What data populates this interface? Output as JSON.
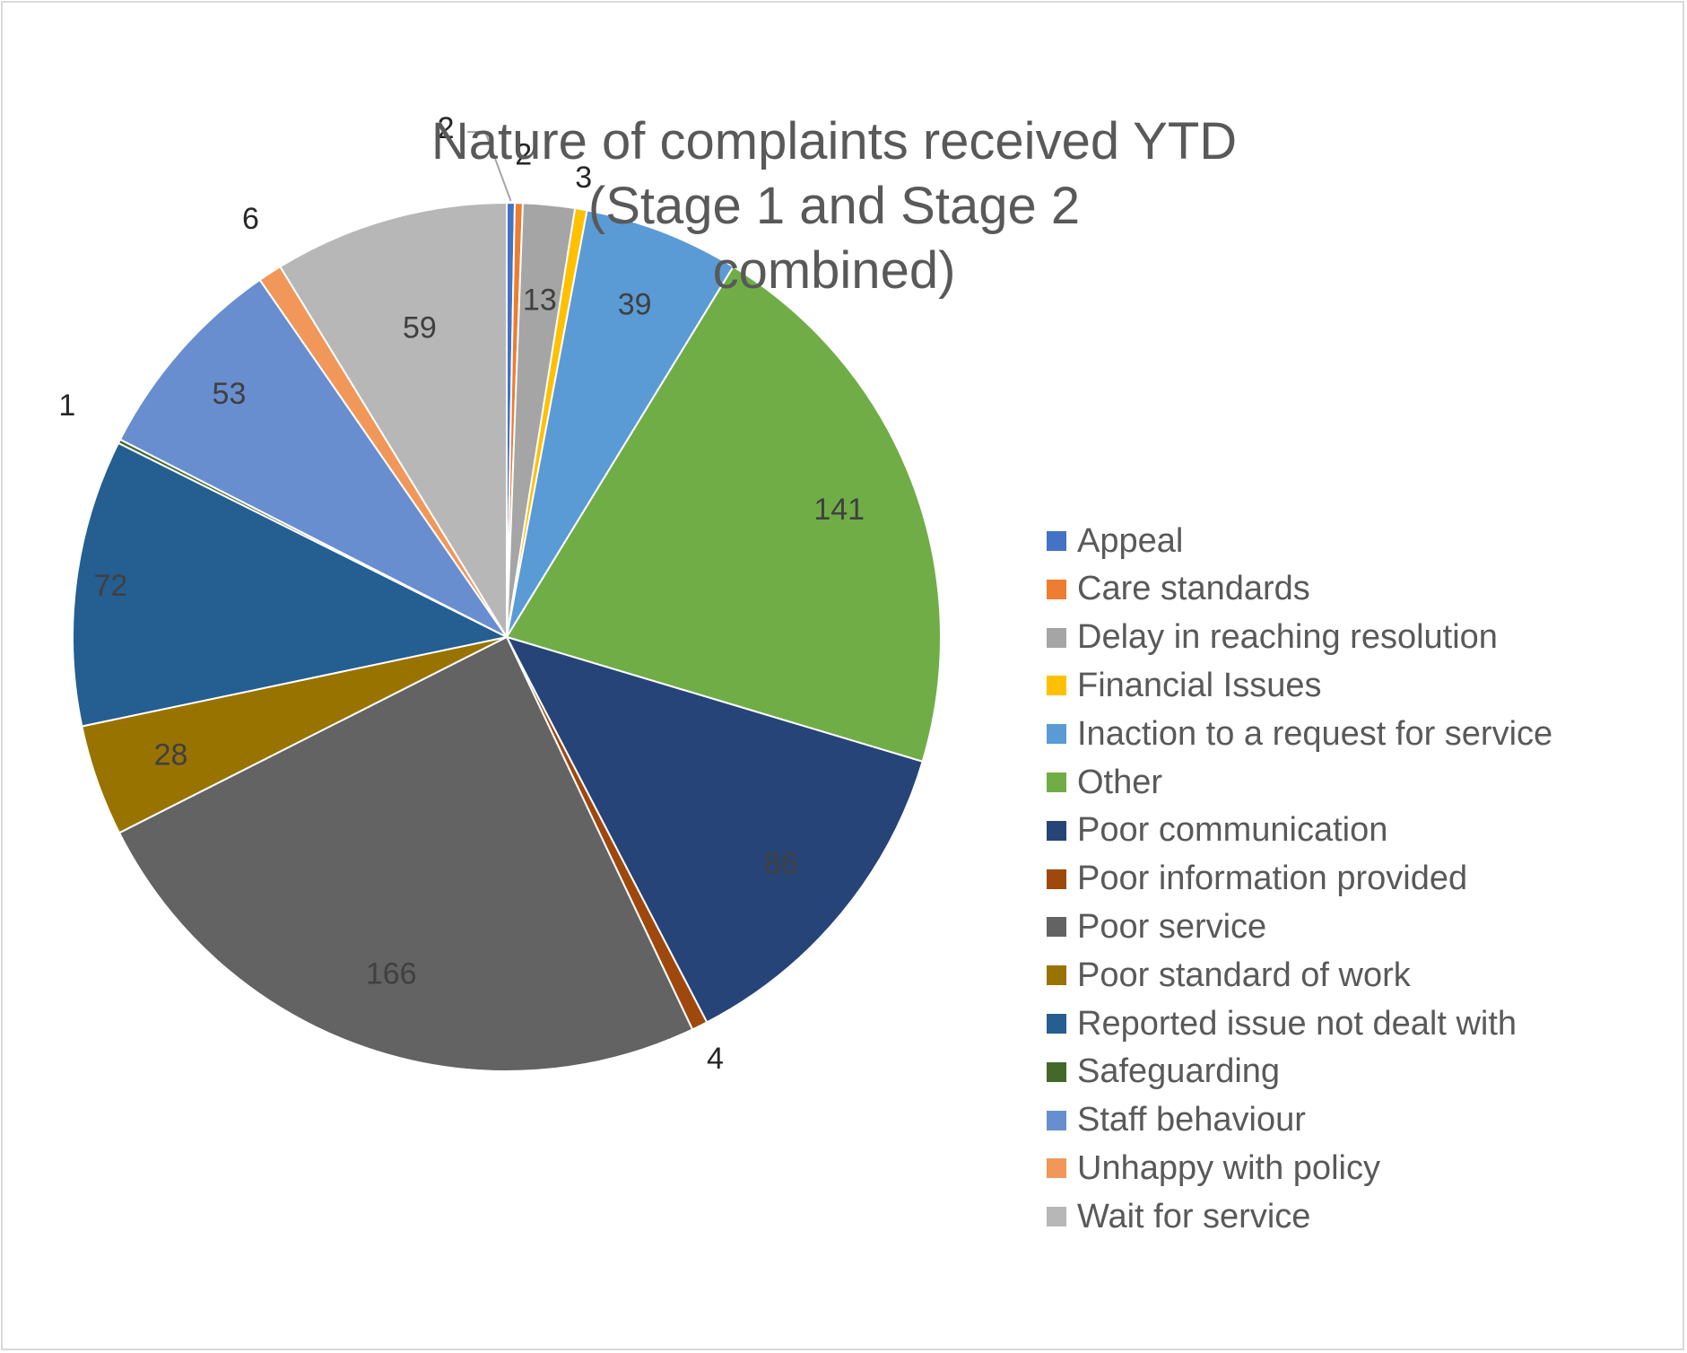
{
  "chart_data": {
    "type": "pie",
    "title": "Nature of complaints received YTD\n(Stage 1 and Stage 2\ncombined)",
    "legend_position": "right",
    "slices": [
      {
        "label": "Appeal",
        "value": 2,
        "color": "#4472C4"
      },
      {
        "label": "Care standards",
        "value": 2,
        "color": "#ED7D31"
      },
      {
        "label": "Delay in reaching resolution",
        "value": 13,
        "color": "#A5A5A5"
      },
      {
        "label": "Financial Issues",
        "value": 3,
        "color": "#FFC000"
      },
      {
        "label": "Inaction to a request for service",
        "value": 39,
        "color": "#5B9BD5"
      },
      {
        "label": "Other",
        "value": 141,
        "color": "#70AD47"
      },
      {
        "label": "Poor communication",
        "value": 86,
        "color": "#264478"
      },
      {
        "label": "Poor information provided",
        "value": 4,
        "color": "#9E480E"
      },
      {
        "label": "Poor service",
        "value": 166,
        "color": "#636363"
      },
      {
        "label": "Poor standard of work",
        "value": 28,
        "color": "#997300"
      },
      {
        "label": "Reported issue not dealt with",
        "value": 72,
        "color": "#255E91"
      },
      {
        "label": "Safeguarding",
        "value": 1,
        "color": "#43682B"
      },
      {
        "label": "Staff behaviour",
        "value": 53,
        "color": "#698ED0"
      },
      {
        "label": "Unhappy with policy",
        "value": 6,
        "color": "#F1975A"
      },
      {
        "label": "Wait for service",
        "value": 59,
        "color": "#B7B7B7"
      }
    ]
  }
}
